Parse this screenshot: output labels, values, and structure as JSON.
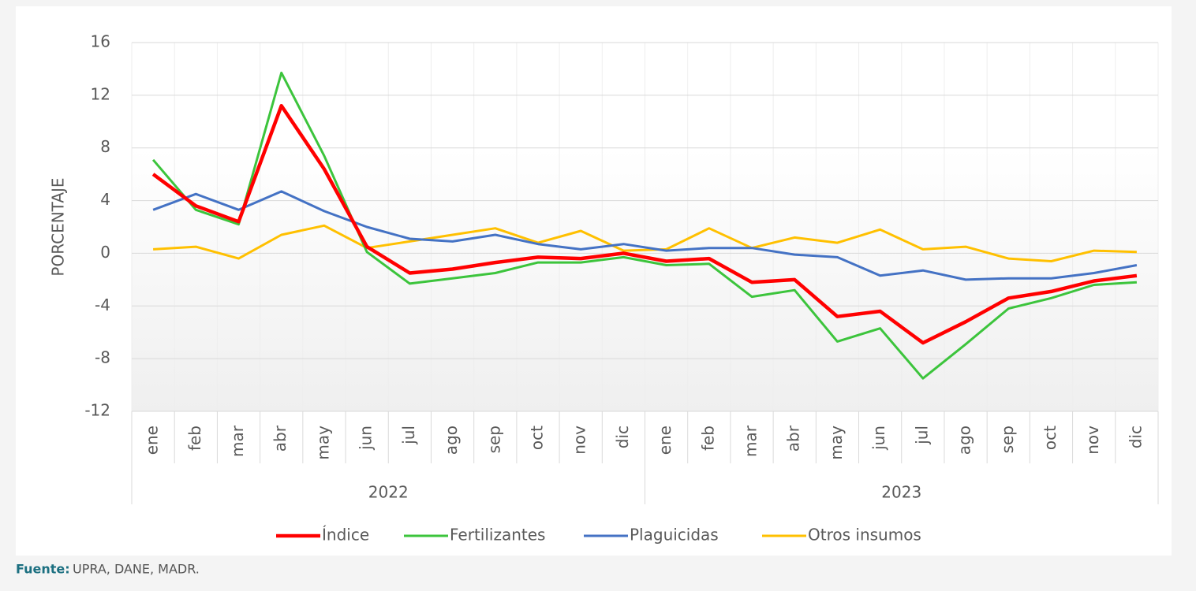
{
  "chart_data": {
    "type": "line",
    "y_label": "PORCENTAJE",
    "categories": [
      "ene",
      "feb",
      "mar",
      "abr",
      "may",
      "jun",
      "jul",
      "ago",
      "sep",
      "oct",
      "nov",
      "dic",
      "ene",
      "feb",
      "mar",
      "abr",
      "may",
      "jun",
      "jul",
      "ago",
      "sep",
      "oct",
      "nov",
      "dic"
    ],
    "groups": [
      "2022",
      "2023"
    ],
    "series": [
      {
        "name": "Índice",
        "color": "#ff0000",
        "values": [
          6.0,
          3.6,
          2.4,
          11.2,
          6.4,
          0.5,
          -1.5,
          -1.2,
          -0.7,
          -0.3,
          -0.4,
          0.0,
          -0.6,
          -0.4,
          -2.2,
          -2.0,
          -4.8,
          -4.4,
          -6.8,
          -5.2,
          -3.4,
          -2.9,
          -2.1,
          -1.7
        ]
      },
      {
        "name": "Fertilizantes",
        "color": "#3cc43c",
        "values": [
          7.1,
          3.3,
          2.2,
          13.7,
          7.4,
          0.1,
          -2.3,
          -1.9,
          -1.5,
          -0.7,
          -0.7,
          -0.3,
          -0.9,
          -0.8,
          -3.3,
          -2.8,
          -6.7,
          -5.7,
          -9.5,
          -6.9,
          -4.2,
          -3.4,
          -2.4,
          -2.2
        ]
      },
      {
        "name": "Plaguicidas",
        "color": "#4472c4",
        "values": [
          3.3,
          4.5,
          3.3,
          4.7,
          3.2,
          2.0,
          1.1,
          0.9,
          1.4,
          0.7,
          0.3,
          0.7,
          0.2,
          0.4,
          0.4,
          -0.1,
          -0.3,
          -1.7,
          -1.3,
          -2.0,
          -1.9,
          -1.9,
          -1.5,
          -0.9
        ]
      },
      {
        "name": "Otros insumos",
        "color": "#ffc000",
        "values": [
          0.3,
          0.5,
          -0.4,
          1.4,
          2.1,
          0.4,
          0.9,
          1.4,
          1.9,
          0.8,
          1.7,
          0.2,
          0.3,
          1.9,
          0.4,
          1.2,
          0.8,
          1.8,
          0.3,
          0.5,
          -0.4,
          -0.6,
          0.2,
          0.1
        ]
      }
    ],
    "ylim": [
      -12,
      16
    ],
    "yticks": [
      -12,
      -8,
      -4,
      0,
      4,
      8,
      12,
      16
    ],
    "grid": true,
    "legend": "bottom",
    "source": {
      "label": "Fuente:",
      "text": "UPRA, DANE, MADR."
    }
  }
}
